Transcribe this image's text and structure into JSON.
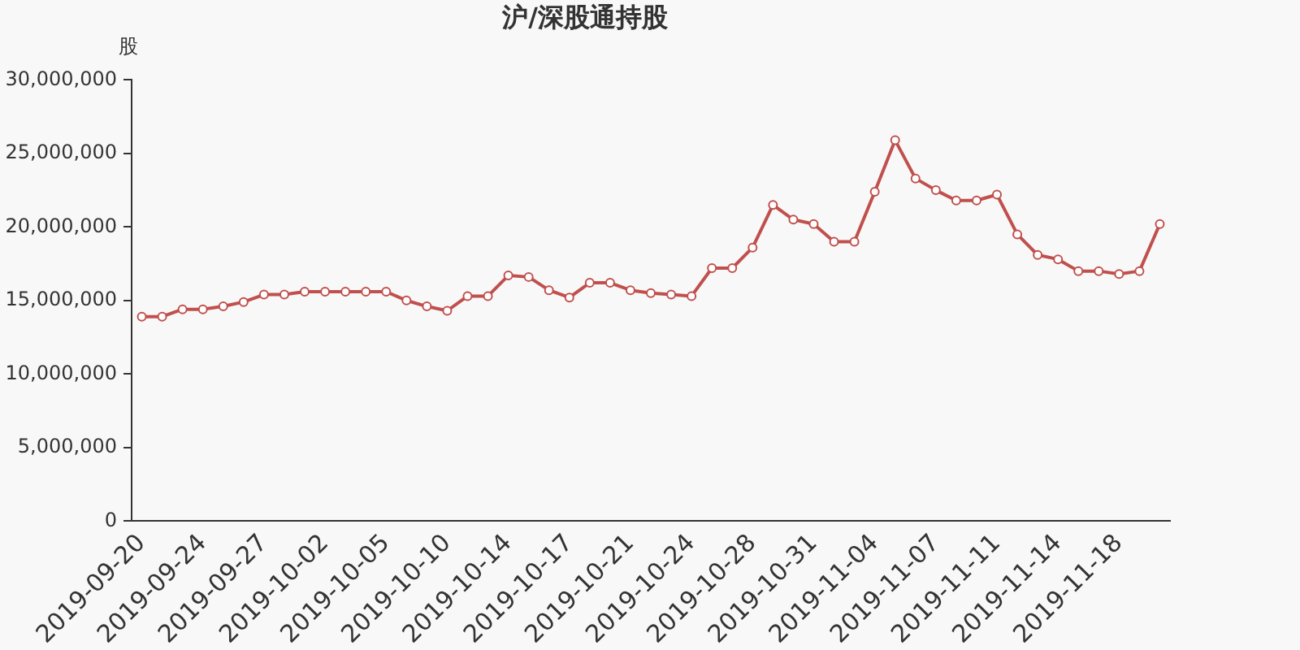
{
  "chart_data": {
    "type": "line",
    "title": "沪/深股通持股",
    "ylabel": "股",
    "categories": [
      "2019-09-20",
      null,
      null,
      "2019-09-24",
      null,
      null,
      "2019-09-27",
      null,
      null,
      "2019-10-02",
      null,
      null,
      "2019-10-05",
      null,
      null,
      "2019-10-10",
      null,
      null,
      "2019-10-14",
      null,
      null,
      "2019-10-17",
      null,
      null,
      "2019-10-21",
      null,
      null,
      "2019-10-24",
      null,
      null,
      "2019-10-28",
      null,
      null,
      "2019-10-31",
      null,
      null,
      "2019-11-04",
      null,
      null,
      "2019-11-07",
      null,
      null,
      "2019-11-11",
      null,
      null,
      "2019-11-14",
      null,
      null,
      "2019-11-18",
      null,
      null
    ],
    "series": [
      {
        "color": "#c0504d",
        "values": [
          13900000,
          13900000,
          14400000,
          14400000,
          14600000,
          14900000,
          15400000,
          15400000,
          15600000,
          15600000,
          15600000,
          15600000,
          15600000,
          15000000,
          14600000,
          14300000,
          15300000,
          15300000,
          16700000,
          16600000,
          15700000,
          15200000,
          16200000,
          16200000,
          15700000,
          15500000,
          15400000,
          15300000,
          17200000,
          17200000,
          18600000,
          21500000,
          20500000,
          20200000,
          19000000,
          19000000,
          22400000,
          25900000,
          23300000,
          22500000,
          21800000,
          21800000,
          22200000,
          19500000,
          18100000,
          17800000,
          17000000,
          17000000,
          16800000,
          17000000,
          20200000
        ]
      }
    ],
    "ylim": [
      0,
      30000000
    ],
    "yticks": [
      {
        "value": 0,
        "label": "0"
      },
      {
        "value": 5000000,
        "label": "5,000,000"
      },
      {
        "value": 10000000,
        "label": "10,000,000"
      },
      {
        "value": 15000000,
        "label": "15,000,000"
      },
      {
        "value": 20000000,
        "label": "20,000,000"
      },
      {
        "value": 25000000,
        "label": "25,000,000"
      },
      {
        "value": 30000000,
        "label": "30,000,000"
      }
    ],
    "grid": false,
    "legend": false,
    "marker": "circle",
    "line_style": "solid"
  }
}
